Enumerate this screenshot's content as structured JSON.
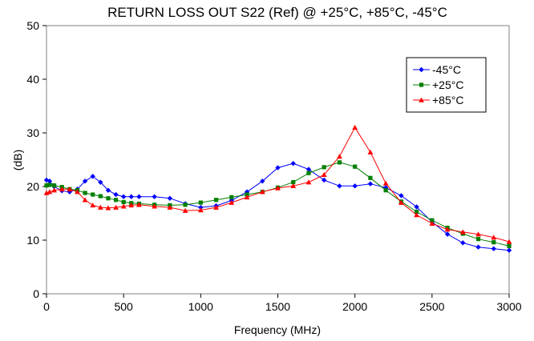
{
  "chart_data": {
    "type": "line",
    "title": "RETURN LOSS OUT S22 (Ref) @ +25°C, +85°C, -45°C",
    "xlabel": "Frequency (MHz)",
    "ylabel": "(dB)",
    "xlim": [
      0,
      3000
    ],
    "ylim": [
      0,
      50
    ],
    "xticks": [
      0,
      500,
      1000,
      1500,
      2000,
      2500,
      3000
    ],
    "yticks": [
      0,
      10,
      20,
      30,
      40,
      50
    ],
    "grid": false,
    "legend_position": "top-right",
    "x": [
      0,
      20,
      50,
      100,
      150,
      200,
      250,
      300,
      350,
      400,
      450,
      500,
      550,
      600,
      700,
      800,
      900,
      1000,
      1100,
      1200,
      1300,
      1400,
      1500,
      1600,
      1700,
      1800,
      1900,
      2000,
      2100,
      2200,
      2300,
      2400,
      2500,
      2600,
      2700,
      2800,
      2900,
      3000
    ],
    "series": [
      {
        "name": "-45°C",
        "color": "#0000ff",
        "marker": "diamond",
        "values": [
          21.2,
          21.0,
          20.0,
          19.2,
          19.0,
          19.5,
          21.0,
          21.9,
          20.8,
          19.3,
          18.5,
          18.1,
          18.1,
          18.1,
          18.1,
          17.8,
          16.8,
          16.1,
          16.4,
          17.4,
          19.0,
          21.0,
          23.5,
          24.3,
          23.2,
          21.2,
          20.1,
          20.1,
          20.5,
          19.8,
          18.3,
          16.2,
          13.4,
          11.1,
          9.5,
          8.7,
          8.4,
          8.1
        ]
      },
      {
        "name": "+25°C",
        "color": "#008000",
        "marker": "square",
        "values": [
          20.2,
          20.3,
          20.2,
          19.9,
          19.5,
          19.3,
          18.8,
          18.5,
          18.2,
          17.8,
          17.5,
          17.1,
          16.9,
          16.8,
          16.6,
          16.5,
          16.6,
          17.0,
          17.5,
          18.0,
          18.5,
          19.0,
          19.8,
          20.8,
          22.5,
          23.6,
          24.5,
          23.7,
          21.6,
          19.3,
          17.2,
          15.3,
          13.7,
          12.3,
          11.2,
          10.2,
          9.6,
          8.9
        ]
      },
      {
        "name": "+85°C",
        "color": "#ff0000",
        "marker": "triangle",
        "values": [
          18.8,
          19.0,
          19.3,
          19.5,
          19.5,
          19.0,
          17.5,
          16.5,
          16.1,
          16.0,
          16.1,
          16.3,
          16.5,
          16.6,
          16.3,
          16.1,
          15.5,
          15.6,
          16.1,
          17.0,
          18.0,
          19.0,
          19.7,
          20.1,
          20.8,
          22.2,
          25.6,
          31.0,
          26.4,
          20.6,
          17.0,
          14.7,
          13.1,
          12.0,
          11.5,
          11.1,
          10.5,
          9.7
        ]
      }
    ]
  }
}
